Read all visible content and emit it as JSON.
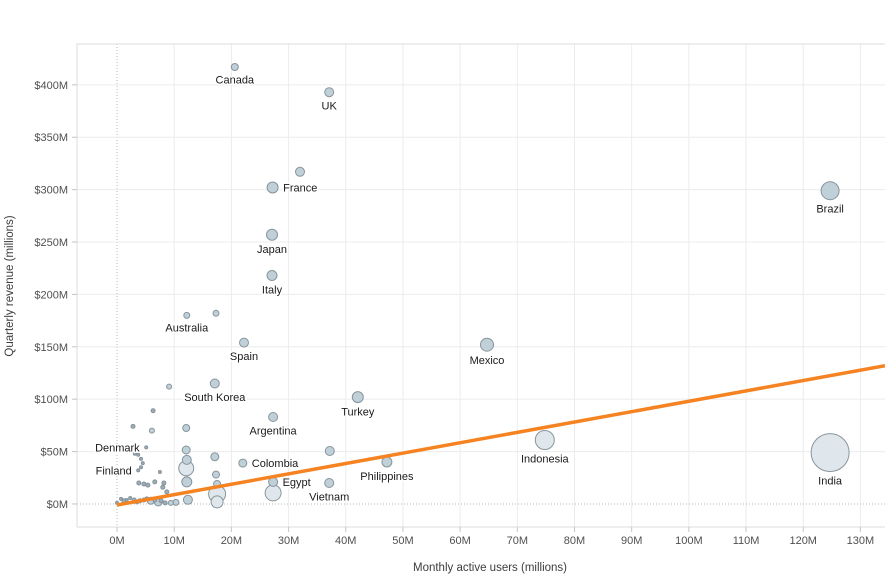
{
  "colors": {
    "trend": "#f58321",
    "bubble_light": "#dfe7ec",
    "bubble_mid": "#c0d0d9",
    "bubble_dark": "#9bafb9",
    "bubble_stroke": "#7e8b93",
    "grid": "#ececec",
    "zero_line": "#b9b9b9",
    "border": "#dcdcdc",
    "tick": "#c6c6c6",
    "tick_text": "#4f4f4f",
    "label_text": "#1a1a1a"
  },
  "chart_data": {
    "type": "scatter",
    "title": "",
    "xlabel": "Monthly active users (millions)",
    "ylabel": "Quarterly revenue (millions)",
    "xlim": [
      -7,
      134.3
    ],
    "ylim": [
      -22,
      439
    ],
    "grid": true,
    "x_tick_values": [
      0,
      10,
      20,
      30,
      40,
      50,
      60,
      70,
      80,
      90,
      100,
      110,
      120,
      130
    ],
    "x_tick_labels": [
      "0M",
      "10M",
      "20M",
      "30M",
      "40M",
      "50M",
      "60M",
      "70M",
      "80M",
      "90M",
      "100M",
      "110M",
      "120M",
      "130M"
    ],
    "y_tick_values": [
      0,
      50,
      100,
      150,
      200,
      250,
      300,
      350,
      400
    ],
    "y_tick_labels": [
      "$0M",
      "$50M",
      "$100M",
      "$150M",
      "$200M",
      "$250M",
      "$300M",
      "$350M",
      "$400M"
    ],
    "trend_line": {
      "x1": 0,
      "y1": -1,
      "x2": 134.3,
      "y2": 132
    },
    "points": [
      {
        "name": "Canada",
        "x": 20.6,
        "y": 417,
        "r": 3.5,
        "pos": "below"
      },
      {
        "name": "UK",
        "x": 37.1,
        "y": 393,
        "r": 4.5,
        "pos": "below"
      },
      {
        "name": "France",
        "x": 27.2,
        "y": 302,
        "r": 5.5,
        "pos": "right"
      },
      {
        "name": "Japan",
        "x": 27.1,
        "y": 257,
        "r": 5.5,
        "pos": "below"
      },
      {
        "name": "Italy",
        "x": 27.1,
        "y": 218,
        "r": 5,
        "pos": "below"
      },
      {
        "name": "Australia",
        "x": 12.2,
        "y": 180,
        "r": 3,
        "pos": "below"
      },
      {
        "name": "Spain",
        "x": 22.2,
        "y": 154,
        "r": 4.5,
        "pos": "below"
      },
      {
        "name": "South Korea",
        "x": 17.1,
        "y": 115,
        "r": 4.5,
        "pos": "below"
      },
      {
        "name": "Turkey",
        "x": 42.1,
        "y": 102,
        "r": 5.5,
        "pos": "below"
      },
      {
        "name": "Argentina",
        "x": 27.3,
        "y": 83,
        "r": 4.5,
        "pos": "below"
      },
      {
        "name": "Mexico",
        "x": 64.7,
        "y": 152,
        "r": 6.5,
        "pos": "below",
        "tone": "mid"
      },
      {
        "name": "Denmark",
        "x": 5.1,
        "y": 54,
        "r": 1.5,
        "pos": "left"
      },
      {
        "name": "Finland",
        "x": 3.7,
        "y": 32,
        "r": 1.5,
        "pos": "left"
      },
      {
        "name": "Colombia",
        "x": 22.0,
        "y": 39,
        "r": 4,
        "pos": "right"
      },
      {
        "name": "Egypt",
        "x": 27.3,
        "y": 21,
        "r": 4.5,
        "pos": "right"
      },
      {
        "name": "Vietnam",
        "x": 37.1,
        "y": 20,
        "r": 4.5,
        "pos": "below"
      },
      {
        "name": "Philippines",
        "x": 47.2,
        "y": 40,
        "r": 5,
        "pos": "below"
      },
      {
        "name": "Indonesia",
        "x": 74.8,
        "y": 61,
        "r": 9.5,
        "pos": "below",
        "tone": "light"
      },
      {
        "name": "Brazil",
        "x": 124.7,
        "y": 299,
        "r": 9,
        "pos": "below",
        "tone": "mid"
      },
      {
        "name": "India",
        "x": 124.7,
        "y": 49,
        "r": 19,
        "pos": "below",
        "tone": "light"
      }
    ],
    "other_points": [
      {
        "x": 32,
        "y": 317,
        "r": 4.5
      },
      {
        "x": 17.3,
        "y": 182,
        "r": 3
      },
      {
        "x": 9.1,
        "y": 112,
        "r": 2.5
      },
      {
        "x": 6.3,
        "y": 89,
        "r": 2
      },
      {
        "x": 12.1,
        "y": 72.5,
        "r": 3.5
      },
      {
        "x": 2.8,
        "y": 74,
        "r": 2
      },
      {
        "x": 6.1,
        "y": 70,
        "r": 2.5
      },
      {
        "x": 12.1,
        "y": 51.5,
        "r": 4
      },
      {
        "x": 12.2,
        "y": 42,
        "r": 4.5
      },
      {
        "x": 12.1,
        "y": 34,
        "r": 7.5
      },
      {
        "x": 12.2,
        "y": 21,
        "r": 5
      },
      {
        "x": 12.4,
        "y": 4,
        "r": 4.5
      },
      {
        "x": 17.1,
        "y": 45,
        "r": 4
      },
      {
        "x": 17.3,
        "y": 28,
        "r": 3.5
      },
      {
        "x": 17.5,
        "y": 19,
        "r": 3.5
      },
      {
        "x": 17.5,
        "y": 9.5,
        "r": 8.5
      },
      {
        "x": 17.5,
        "y": 2,
        "r": 6
      },
      {
        "x": 37.2,
        "y": 50.5,
        "r": 4.5
      },
      {
        "x": 27.3,
        "y": 10.5,
        "r": 8
      },
      {
        "x": 3.1,
        "y": 48,
        "r": 1.5
      },
      {
        "x": 3.7,
        "y": 47,
        "r": 1.5
      },
      {
        "x": 4.2,
        "y": 43,
        "r": 1.5
      },
      {
        "x": 4.5,
        "y": 39,
        "r": 1.5
      },
      {
        "x": 4.2,
        "y": 35,
        "r": 1.5
      },
      {
        "x": 7.5,
        "y": 30.5,
        "r": 1.5
      },
      {
        "x": 3.8,
        "y": 20,
        "r": 2
      },
      {
        "x": 4.7,
        "y": 19,
        "r": 2
      },
      {
        "x": 5.4,
        "y": 18,
        "r": 2
      },
      {
        "x": 6.6,
        "y": 21,
        "r": 2
      },
      {
        "x": 8.2,
        "y": 20,
        "r": 2
      },
      {
        "x": 8.0,
        "y": 16,
        "r": 2
      },
      {
        "x": 8.7,
        "y": 11.5,
        "r": 2
      },
      {
        "x": 0,
        "y": 1,
        "r": 1.5
      },
      {
        "x": 0.7,
        "y": 4.8,
        "r": 1.5
      },
      {
        "x": 1.2,
        "y": 3,
        "r": 2
      },
      {
        "x": 1.7,
        "y": 3.8,
        "r": 1.5
      },
      {
        "x": 2.3,
        "y": 5.7,
        "r": 1.5
      },
      {
        "x": 3.0,
        "y": 3.8,
        "r": 2
      },
      {
        "x": 3.5,
        "y": 2,
        "r": 2
      },
      {
        "x": 4.0,
        "y": 3,
        "r": 2
      },
      {
        "x": 4.7,
        "y": 3.8,
        "r": 2
      },
      {
        "x": 5.2,
        "y": 4.8,
        "r": 2
      },
      {
        "x": 5.9,
        "y": 3,
        "r": 3.5
      },
      {
        "x": 6.6,
        "y": 3.8,
        "r": 2
      },
      {
        "x": 7.2,
        "y": 2,
        "r": 4
      },
      {
        "x": 7.7,
        "y": 3,
        "r": 2
      },
      {
        "x": 8.4,
        "y": 1,
        "r": 2
      },
      {
        "x": 9.4,
        "y": 1,
        "r": 2.5
      },
      {
        "x": 10.3,
        "y": 1.5,
        "r": 3
      }
    ]
  }
}
